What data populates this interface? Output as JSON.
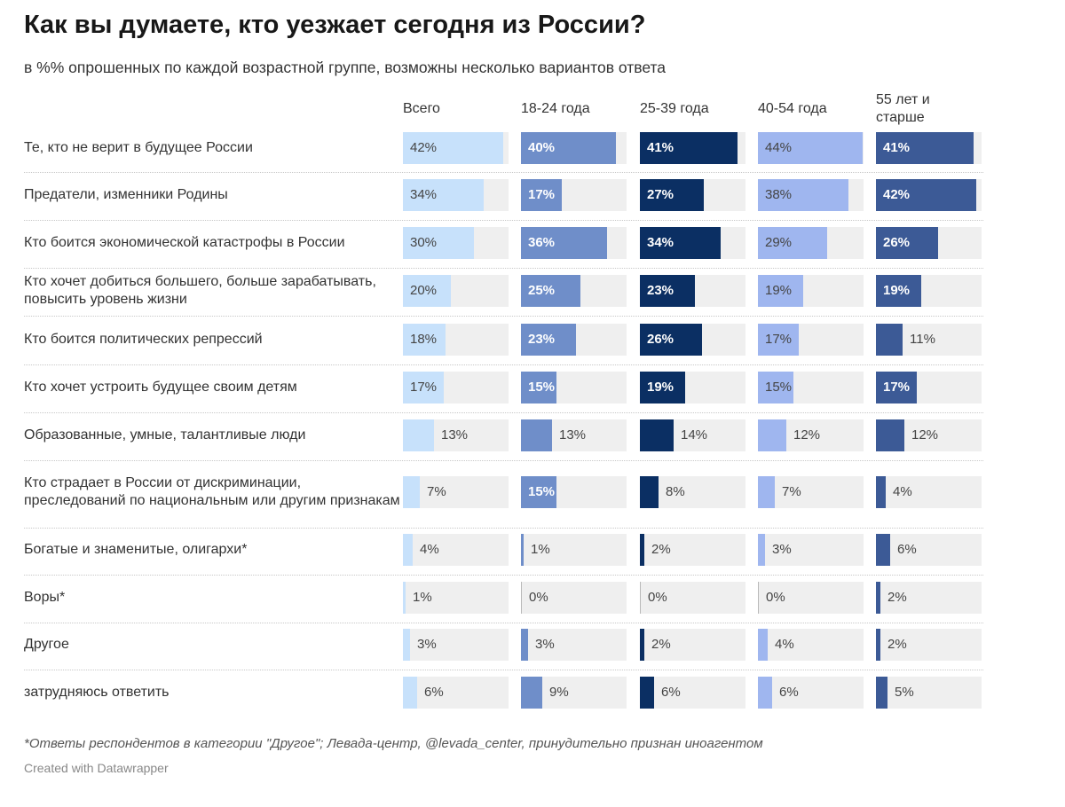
{
  "title": "Как вы думаете, кто уезжает сегодня из России?",
  "subtitle": "в %% опрошенных по каждой возрастной группе, возможны несколько вариантов ответа",
  "footnote": "*Ответы респондентов в категории \"Другое\"; Левада-центр, @levada_center, принудительно признан иноагентом",
  "credit": "Created with Datawrapper",
  "chart_data": {
    "type": "bar",
    "columns": [
      "Всего",
      "18-24 года",
      "25-39 года",
      "40-54 года",
      "55 лет и старше"
    ],
    "categories": [
      "Те, кто не верит в будущее России",
      "Предатели, изменники Родины",
      "Кто боится экономической катастрофы в России",
      "Кто хочет добиться большего, больше зарабатывать, повысить уровень жизни",
      "Кто боится политических репрессий",
      "Кто хочет устроить будущее своим детям",
      "Образованные, умные, талантливые люди",
      "Кто страдает в России от дискриминации, преследований по национальным или другим признакам",
      "Богатые и знаменитые, олигархи*",
      "Воры*",
      "Другое",
      "затрудняюсь ответить"
    ],
    "series": [
      {
        "name": "Всего",
        "color": "#c7e1fb",
        "values": [
          42,
          34,
          30,
          20,
          18,
          17,
          13,
          7,
          4,
          1,
          3,
          6
        ]
      },
      {
        "name": "18-24 года",
        "color": "#6f8ec9",
        "values": [
          40,
          17,
          36,
          25,
          23,
          15,
          13,
          15,
          1,
          0,
          3,
          9
        ]
      },
      {
        "name": "25-39 года",
        "color": "#0b2f63",
        "values": [
          41,
          27,
          34,
          23,
          26,
          19,
          14,
          8,
          2,
          0,
          2,
          6
        ]
      },
      {
        "name": "40-54 года",
        "color": "#9fb6ef",
        "values": [
          44,
          38,
          29,
          19,
          17,
          15,
          12,
          7,
          3,
          0,
          4,
          6
        ]
      },
      {
        "name": "55 лет и старше",
        "color": "#3c5a96",
        "values": [
          41,
          42,
          26,
          19,
          11,
          17,
          12,
          4,
          6,
          2,
          2,
          5
        ]
      }
    ],
    "value_suffix": "%",
    "xlim": [
      0,
      44
    ],
    "grid": false,
    "legend": "none"
  }
}
